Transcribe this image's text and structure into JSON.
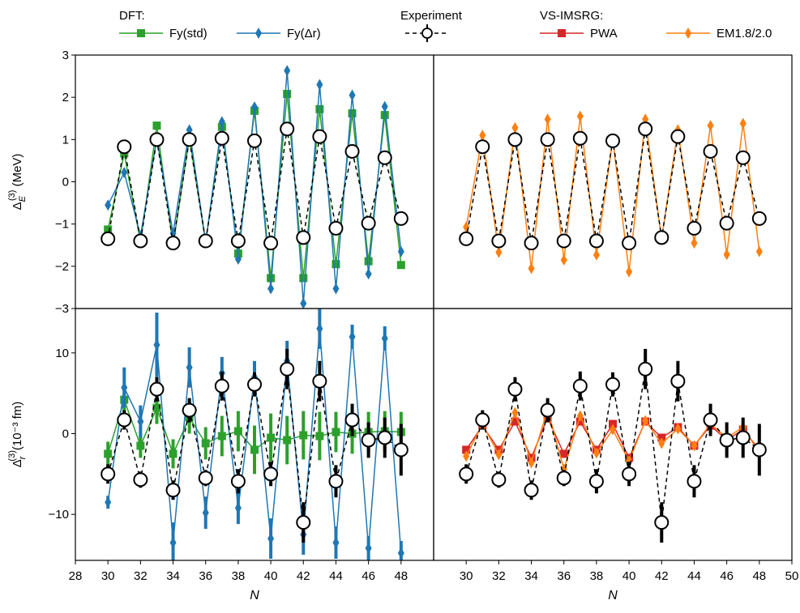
{
  "legend": {
    "groups": [
      {
        "title": "DFT:",
        "entries": [
          {
            "label": "Fy(std)",
            "color": "#2ca02c",
            "marker": "square",
            "line": "solid"
          },
          {
            "label": "Fy(Δr)",
            "color": "#1f77b4",
            "marker": "diamond",
            "line": "solid"
          }
        ]
      },
      {
        "title": "Experiment",
        "entries": [
          {
            "label": "",
            "color": "#000000",
            "marker": "circle",
            "line": "dashed"
          }
        ]
      },
      {
        "title": "VS-IMSRG:",
        "entries": [
          {
            "label": "PWA",
            "color": "#d62728",
            "marker": "square",
            "line": "solid"
          },
          {
            "label": "EM1.8/2.0",
            "color": "#ff7f0e",
            "marker": "diamond",
            "line": "solid"
          }
        ]
      }
    ]
  },
  "chart_data": [
    {
      "id": "top-left",
      "type": "line",
      "ylabel": "ΔE(3) (MeV)",
      "ylabel_main": "Δ",
      "ylabel_sub": "E",
      "ylabel_sup": "(3)",
      "ylabel_unit": " (MeV)",
      "xlabel": "",
      "xlim": [
        28,
        50
      ],
      "ylim": [
        -3,
        3
      ],
      "xticks": [],
      "yticks": [
        -3,
        -2,
        -1,
        0,
        1,
        2,
        3
      ],
      "series": [
        {
          "name": "Fy(std)",
          "color": "#2ca02c",
          "marker": "square",
          "line": "solid",
          "x": [
            30,
            31,
            32,
            33,
            34,
            35,
            36,
            37,
            38,
            39,
            40,
            41,
            42,
            43,
            44,
            45,
            46,
            47,
            48
          ],
          "y": [
            -1.13,
            0.67,
            -1.43,
            1.33,
            -1.5,
            1.05,
            -1.43,
            1.3,
            -1.7,
            1.68,
            -2.28,
            2.08,
            -2.28,
            1.72,
            -1.95,
            1.62,
            -1.88,
            1.58,
            -1.97
          ]
        },
        {
          "name": "Fy(Δr)",
          "color": "#1f77b4",
          "marker": "diamond",
          "line": "solid",
          "x": [
            30,
            31,
            32,
            33,
            34,
            35,
            36,
            37,
            38,
            39,
            40,
            41,
            42,
            43,
            44,
            45,
            46,
            47,
            48
          ],
          "y": [
            -0.55,
            0.22,
            -1.28,
            1.02,
            -1.22,
            1.23,
            -1.43,
            1.42,
            -1.83,
            1.77,
            -2.53,
            2.63,
            -2.88,
            2.3,
            -2.53,
            2.05,
            -2.18,
            1.78,
            -1.65
          ]
        },
        {
          "name": "Experiment",
          "color": "#000000",
          "marker": "circle",
          "line": "dashed",
          "x": [
            30,
            31,
            32,
            33,
            34,
            35,
            36,
            37,
            38,
            39,
            40,
            41,
            42,
            43,
            44,
            45,
            46,
            47,
            48
          ],
          "y": [
            -1.35,
            0.83,
            -1.4,
            1.0,
            -1.45,
            1.0,
            -1.4,
            1.03,
            -1.4,
            0.97,
            -1.45,
            1.25,
            -1.32,
            1.07,
            -1.1,
            0.72,
            -0.98,
            0.57,
            -0.87
          ]
        }
      ]
    },
    {
      "id": "top-right",
      "type": "line",
      "xlabel": "",
      "xlim": [
        28,
        50
      ],
      "ylim": [
        -3,
        3
      ],
      "xticks": [],
      "yticks": [],
      "series": [
        {
          "name": "EM1.8/2.0",
          "color": "#ff7f0e",
          "marker": "diamond",
          "line": "solid",
          "x": [
            30,
            31,
            32,
            33,
            34,
            35,
            36,
            37,
            38,
            39,
            40,
            41,
            42,
            43,
            44,
            45,
            46,
            47,
            48
          ],
          "y": [
            -1.07,
            1.1,
            -1.67,
            1.28,
            -2.05,
            1.48,
            -1.85,
            1.55,
            -1.73,
            1.0,
            -2.13,
            1.48,
            -1.35,
            1.23,
            -1.45,
            1.33,
            -1.72,
            1.38,
            -1.65
          ]
        },
        {
          "name": "Experiment",
          "color": "#000000",
          "marker": "circle",
          "line": "dashed",
          "x": [
            30,
            31,
            32,
            33,
            34,
            35,
            36,
            37,
            38,
            39,
            40,
            41,
            42,
            43,
            44,
            45,
            46,
            47,
            48
          ],
          "y": [
            -1.35,
            0.83,
            -1.4,
            1.0,
            -1.45,
            1.0,
            -1.4,
            1.03,
            -1.4,
            0.97,
            -1.45,
            1.25,
            -1.32,
            1.07,
            -1.1,
            0.72,
            -0.98,
            0.57,
            -0.87
          ]
        }
      ]
    },
    {
      "id": "bottom-left",
      "type": "line",
      "ylabel": "Δr(3)(10⁻³ fm)",
      "ylabel_main": "Δ",
      "ylabel_sub": "r",
      "ylabel_sup": "(3)",
      "ylabel_unit": "(10⁻³ fm)",
      "xlabel": "N",
      "xlim": [
        28,
        50
      ],
      "ylim": [
        -15.7,
        15.5
      ],
      "xticks": [
        28,
        30,
        32,
        34,
        36,
        38,
        40,
        42,
        44,
        46,
        48
      ],
      "yticks": [
        -10,
        0,
        10
      ],
      "series": [
        {
          "name": "Fy(std)",
          "color": "#2ca02c",
          "marker": "square",
          "line": "solid",
          "x": [
            30,
            31,
            32,
            33,
            34,
            35,
            36,
            37,
            38,
            39,
            40,
            41,
            42,
            43,
            44,
            45,
            46,
            47,
            48
          ],
          "y": [
            -2.5,
            4.2,
            -1.5,
            3.2,
            -2.5,
            2.0,
            -1.2,
            -0.3,
            0.3,
            -2.0,
            -0.5,
            -0.8,
            -0.2,
            -0.3,
            0.2,
            0.0,
            0.2,
            0.3,
            0.2
          ],
          "err": [
            1.5,
            1.5,
            1.5,
            2.0,
            1.8,
            2.0,
            2.0,
            2.5,
            2.5,
            3.0,
            3.0,
            3.0,
            3.0,
            3.0,
            2.5,
            2.5,
            2.5,
            2.5,
            2.5
          ]
        },
        {
          "name": "Fy(Δr)",
          "color": "#1f77b4",
          "marker": "diamond",
          "line": "solid",
          "x": [
            30,
            31,
            32,
            33,
            34,
            35,
            36,
            37,
            38,
            39,
            40,
            41,
            42,
            43,
            44,
            45,
            46,
            47,
            48
          ],
          "y": [
            -8.5,
            5.7,
            1.5,
            11.0,
            -13.5,
            8.2,
            -9.8,
            7.5,
            -9.2,
            7.0,
            -13.0,
            9.0,
            -12.5,
            13.0,
            -13.5,
            12.0,
            -14.2,
            11.8,
            -14.8
          ],
          "err": [
            0.8,
            2.5,
            2.0,
            4.0,
            2.5,
            2.5,
            2.0,
            2.0,
            2.0,
            2.0,
            2.5,
            2.5,
            2.5,
            2.5,
            2.0,
            1.5,
            1.5,
            1.5,
            1.5
          ]
        },
        {
          "name": "Experiment",
          "color": "#000000",
          "marker": "circle",
          "line": "dashed",
          "x": [
            30,
            31,
            32,
            33,
            34,
            35,
            36,
            37,
            38,
            39,
            40,
            41,
            42,
            43,
            44,
            45,
            46,
            47,
            48
          ],
          "y": [
            -5.0,
            1.7,
            -5.7,
            5.5,
            -7.0,
            2.9,
            -5.5,
            5.9,
            -5.9,
            6.1,
            -5.0,
            8.0,
            -11.0,
            6.5,
            -5.9,
            1.7,
            -0.8,
            -0.5,
            -2.0
          ],
          "err": [
            1.2,
            1.2,
            1.0,
            1.5,
            1.2,
            1.5,
            1.0,
            1.8,
            1.5,
            1.5,
            1.5,
            2.5,
            2.5,
            2.5,
            2.0,
            2.0,
            2.2,
            2.5,
            3.2
          ]
        }
      ]
    },
    {
      "id": "bottom-right",
      "type": "line",
      "xlabel": "N",
      "xlim": [
        28,
        50
      ],
      "ylim": [
        -15.7,
        15.5
      ],
      "xticks": [
        30,
        32,
        34,
        36,
        38,
        40,
        42,
        44,
        46,
        48,
        50
      ],
      "yticks": [],
      "series": [
        {
          "name": "PWA",
          "color": "#d62728",
          "marker": "square",
          "line": "solid",
          "x": [
            30,
            31,
            32,
            33,
            34,
            35,
            36,
            37,
            38,
            39,
            40,
            41,
            42,
            43,
            44,
            45,
            46,
            47,
            48
          ],
          "y": [
            -2.0,
            1.0,
            -2.0,
            1.5,
            -3.0,
            2.0,
            -2.5,
            1.5,
            -2.0,
            1.2,
            -3.0,
            1.5,
            -0.5,
            0.8,
            -1.5,
            1.0,
            -0.8,
            0.5,
            -2.0
          ]
        },
        {
          "name": "EM1.8/2.0",
          "color": "#ff7f0e",
          "marker": "diamond",
          "line": "solid",
          "x": [
            30,
            31,
            32,
            33,
            34,
            35,
            36,
            37,
            38,
            39,
            40,
            41,
            42,
            43,
            44,
            45,
            46,
            47,
            48
          ],
          "y": [
            -2.8,
            1.2,
            -2.6,
            2.6,
            -3.6,
            3.0,
            -4.4,
            2.2,
            -2.4,
            0.5,
            -3.4,
            1.6,
            -1.2,
            0.6,
            -1.5,
            1.2,
            -0.5,
            0.8,
            -2.4
          ]
        },
        {
          "name": "Experiment",
          "color": "#000000",
          "marker": "circle",
          "line": "dashed",
          "x": [
            30,
            31,
            32,
            33,
            34,
            35,
            36,
            37,
            38,
            39,
            40,
            41,
            42,
            43,
            44,
            45,
            46,
            47,
            48
          ],
          "y": [
            -5.0,
            1.7,
            -5.7,
            5.5,
            -7.0,
            2.9,
            -5.5,
            5.9,
            -5.9,
            6.1,
            -5.0,
            8.0,
            -11.0,
            6.5,
            -5.9,
            1.7,
            -0.8,
            -0.5,
            -2.0
          ],
          "err": [
            1.2,
            1.2,
            1.0,
            1.5,
            1.2,
            1.5,
            1.0,
            1.8,
            1.5,
            1.5,
            1.5,
            2.5,
            2.5,
            2.5,
            2.0,
            2.0,
            2.2,
            2.5,
            3.2
          ]
        }
      ]
    }
  ]
}
